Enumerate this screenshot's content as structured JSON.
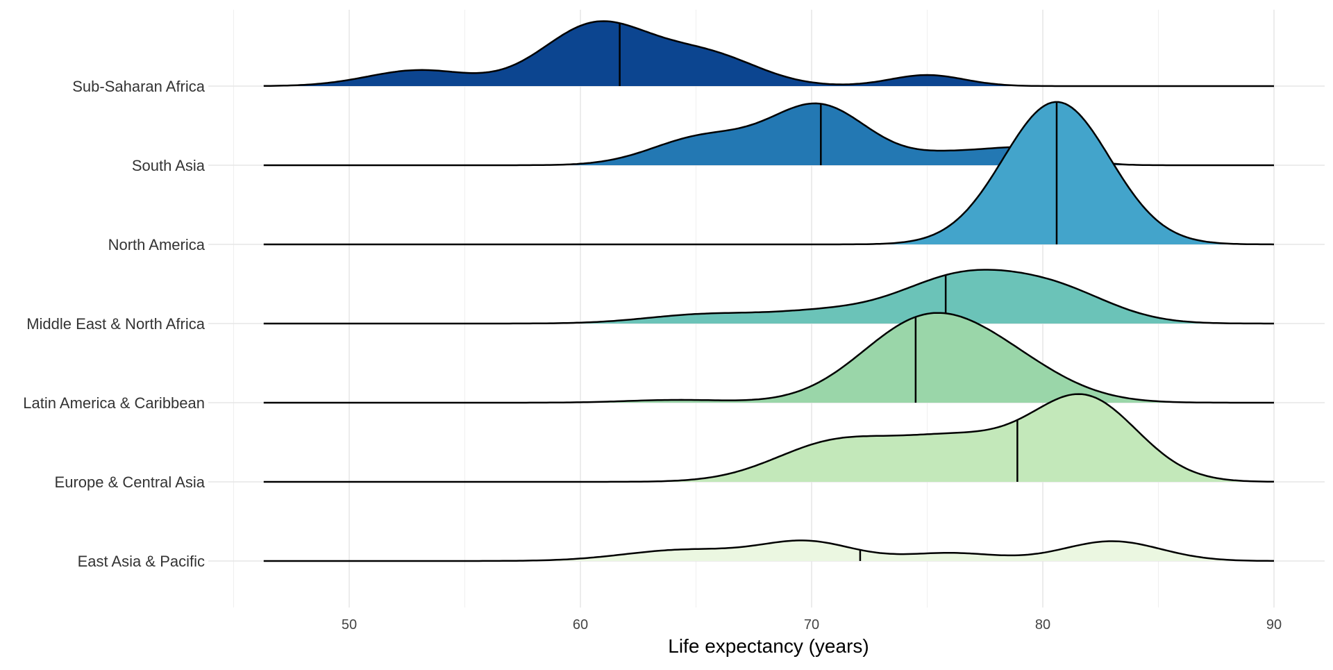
{
  "chart_data": {
    "type": "ridgeline",
    "xlabel": "Life expectancy (years)",
    "xlim": [
      45,
      92
    ],
    "x_ticks": [
      50,
      60,
      70,
      80,
      90
    ],
    "x_minor_ticks": [
      45,
      55,
      65,
      75,
      85
    ],
    "grid": true,
    "range": [
      46.3,
      90
    ],
    "ridges": [
      {
        "name": "East Asia & Pacific",
        "color": "#ebf7e1",
        "median": 72.1,
        "peaks": [
          [
            69.8,
            2.0,
            0.24
          ],
          [
            64.5,
            2.6,
            0.14
          ],
          [
            76.0,
            2.0,
            0.1
          ],
          [
            83.0,
            2.1,
            0.25
          ]
        ]
      },
      {
        "name": "Europe & Central Asia",
        "color": "#c3e8ba",
        "median": 78.9,
        "peaks": [
          [
            71.0,
            2.6,
            0.48
          ],
          [
            76.3,
            2.6,
            0.5
          ],
          [
            81.8,
            2.3,
            1.05
          ]
        ]
      },
      {
        "name": "Latin America & Caribbean",
        "color": "#9ad6a9",
        "median": 74.5,
        "peaks": [
          [
            74.7,
            2.7,
            0.95
          ],
          [
            78.4,
            2.6,
            0.42
          ],
          [
            64.2,
            2.2,
            0.035
          ]
        ]
      },
      {
        "name": "Middle East & North Africa",
        "color": "#6bc3b8",
        "median": 75.8,
        "peaks": [
          [
            76.4,
            2.6,
            0.56
          ],
          [
            80.6,
            2.4,
            0.38
          ],
          [
            65.3,
            2.5,
            0.11
          ],
          [
            70.6,
            2.5,
            0.14
          ]
        ]
      },
      {
        "name": "North America",
        "color": "#43a4cb",
        "median": 80.6,
        "peaks": [
          [
            80.6,
            2.3,
            1.8
          ]
        ]
      },
      {
        "name": "South Asia",
        "color": "#2378b3",
        "median": 70.4,
        "peaks": [
          [
            70.3,
            2.1,
            0.75
          ],
          [
            65.3,
            2.2,
            0.35
          ],
          [
            76.5,
            2.2,
            0.16
          ],
          [
            79.7,
            1.6,
            0.16
          ]
        ]
      },
      {
        "name": "Sub-Saharan Africa",
        "color": "#0c4590",
        "median": 61.7,
        "peaks": [
          [
            60.7,
            2.3,
            0.78
          ],
          [
            65.5,
            2.2,
            0.38
          ],
          [
            53.0,
            2.2,
            0.2
          ],
          [
            75.0,
            1.6,
            0.14
          ]
        ]
      }
    ]
  }
}
